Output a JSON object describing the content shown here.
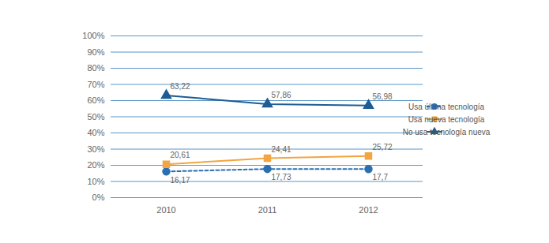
{
  "chart_data": {
    "type": "line",
    "categories": [
      "2010",
      "2011",
      "2012"
    ],
    "series": [
      {
        "name": "Usa última tecnología",
        "color": "#2a70b0",
        "marker": "circle",
        "line_style": "dashed",
        "values": [
          16.17,
          17.73,
          17.7
        ],
        "value_labels": [
          "16,17",
          "17,73",
          "17,7"
        ]
      },
      {
        "name": "Usa nueva tecnología",
        "color": "#f2a541",
        "marker": "square",
        "line_style": "solid",
        "values": [
          20.61,
          24.41,
          25.72
        ],
        "value_labels": [
          "20,61",
          "24,41",
          "25,72"
        ]
      },
      {
        "name": "No usa tecnología nueva",
        "color": "#1d5c94",
        "marker": "triangle",
        "line_style": "solid",
        "values": [
          63.22,
          57.86,
          56.98
        ],
        "value_labels": [
          "63,22",
          "57,86",
          "56,98"
        ]
      }
    ],
    "ylim": [
      0,
      100
    ],
    "yticks": [
      {
        "value": 0,
        "label": "0%"
      },
      {
        "value": 10,
        "label": "10%"
      },
      {
        "value": 20,
        "label": "20%"
      },
      {
        "value": 30,
        "label": "30%"
      },
      {
        "value": 40,
        "label": "40%"
      },
      {
        "value": 50,
        "label": "50%"
      },
      {
        "value": 60,
        "label": "60%"
      },
      {
        "value": 70,
        "label": "70%"
      },
      {
        "value": 80,
        "label": "80%"
      },
      {
        "value": 90,
        "label": "90%"
      },
      {
        "value": 100,
        "label": "100%"
      }
    ],
    "grid": true,
    "legend": "right",
    "data_labels": true
  }
}
